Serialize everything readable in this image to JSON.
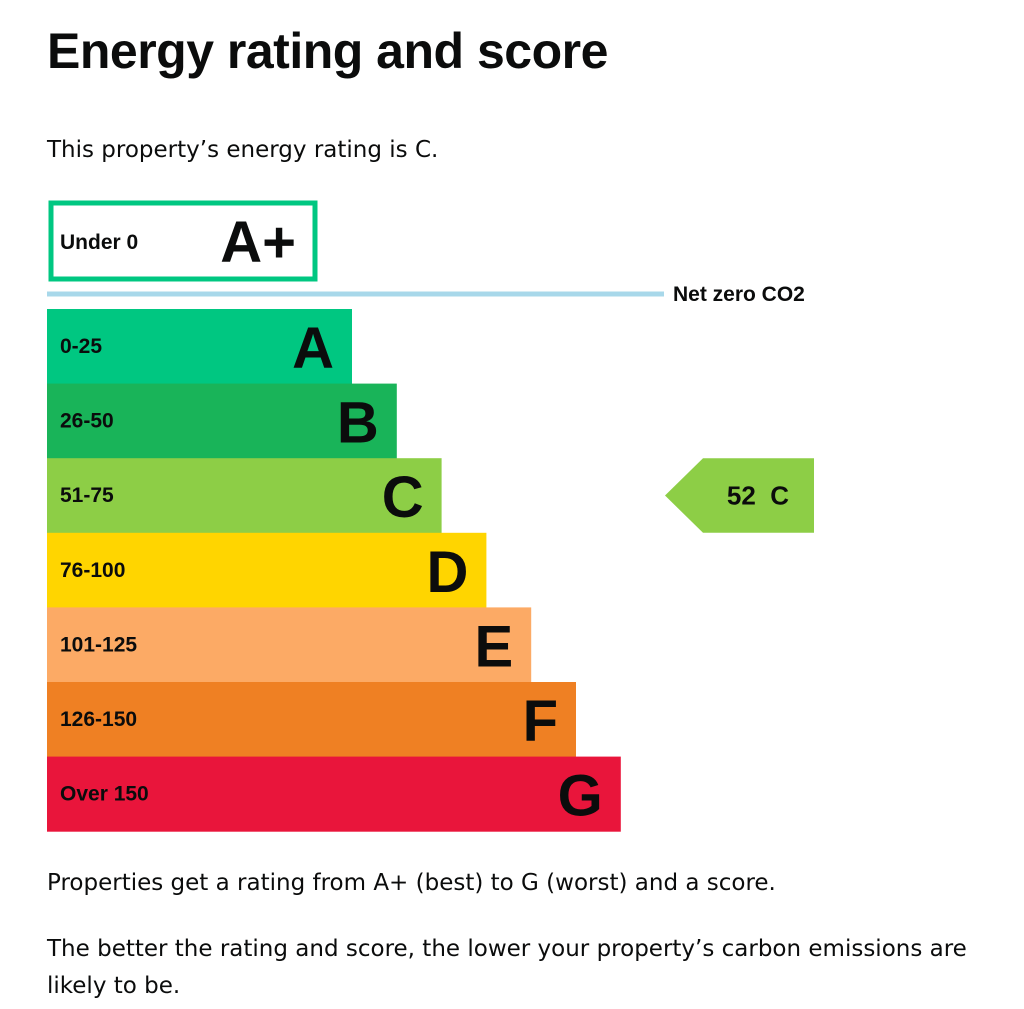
{
  "heading": "Energy rating and score",
  "intro": "This property’s energy rating is C.",
  "description_1": "Properties get a rating from A+ (best) to G (worst) and a score.",
  "description_2": "The better the rating and score, the lower your property’s carbon emissions are likely to be.",
  "chart_data": {
    "type": "bar",
    "categories": [
      "A+",
      "A",
      "B",
      "C",
      "D",
      "E",
      "F",
      "G"
    ],
    "ranges": [
      "Under 0",
      "0-25",
      "26-50",
      "51-75",
      "76-100",
      "101-125",
      "126-150",
      "Over 150"
    ],
    "colors": [
      "#00c781",
      "#00c781",
      "#19b459",
      "#8dce46",
      "#ffd500",
      "#fcaa65",
      "#ef8023",
      "#e9153b"
    ],
    "net_zero_label": "Net zero CO2",
    "net_zero_line_color": "#a8d8ea",
    "current": {
      "score": 52,
      "rating": "C",
      "label": "52  C",
      "color": "#8dce46"
    }
  }
}
